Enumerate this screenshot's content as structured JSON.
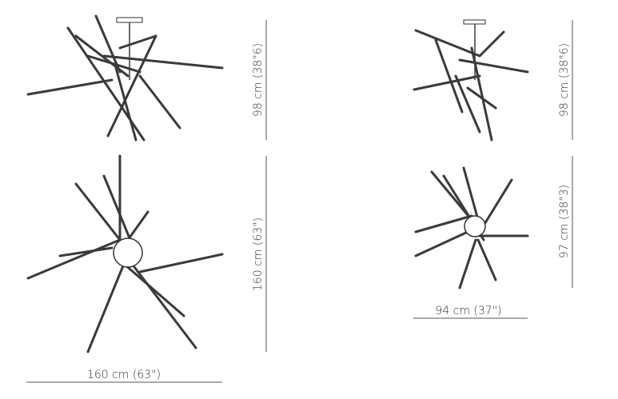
{
  "large": {
    "top_height": "98 cm (38\"6)",
    "front_height": "160 cm (63\")",
    "width": "160 cm (63\")"
  },
  "small": {
    "top_height": "98 cm (38\"6)",
    "front_height": "97 cm (38\"3)",
    "width": "94 cm (37\")"
  }
}
